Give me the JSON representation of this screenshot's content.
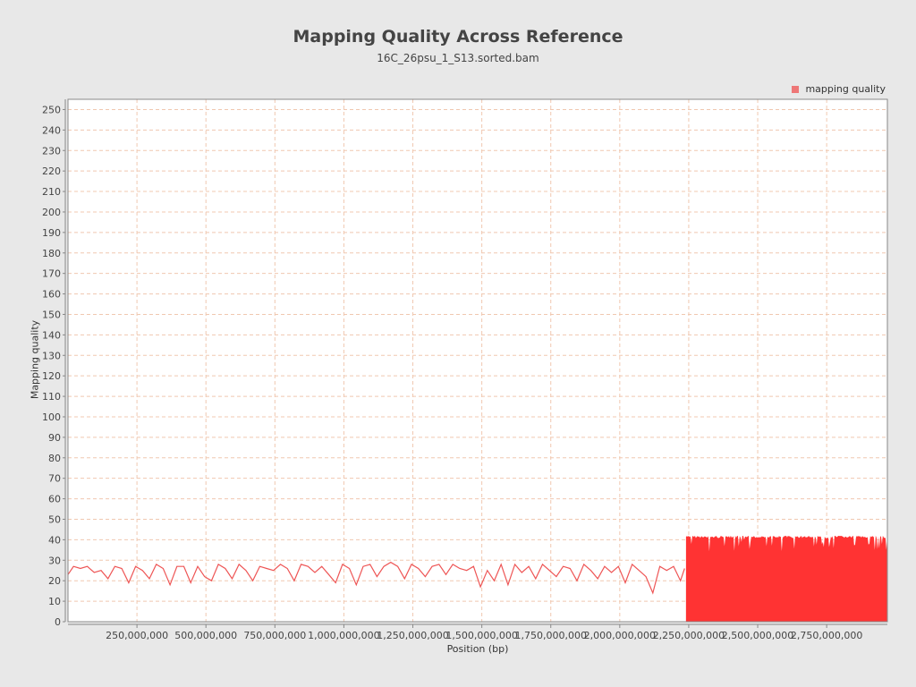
{
  "chart_data": {
    "type": "line",
    "title": "Mapping Quality Across Reference",
    "subtitle": "16C_26psu_1_S13.sorted.bam",
    "xlabel": "Position (bp)",
    "ylabel": "Mapping quality",
    "xlim": [
      0,
      2970000000
    ],
    "ylim": [
      0,
      255
    ],
    "yticks": [
      0,
      10,
      20,
      30,
      40,
      50,
      60,
      70,
      80,
      90,
      100,
      110,
      120,
      130,
      140,
      150,
      160,
      170,
      180,
      190,
      200,
      210,
      220,
      230,
      240,
      250
    ],
    "xticks": [
      250000000,
      500000000,
      750000000,
      1000000000,
      1250000000,
      1500000000,
      1750000000,
      2000000000,
      2250000000,
      2500000000,
      2750000000
    ],
    "xtick_labels": [
      "250,000,000",
      "500,000,000",
      "750,000,000",
      "1,000,000,000",
      "1,250,000,000",
      "1,500,000,000",
      "1,750,000,000",
      "2,000,000,000",
      "2,250,000,000",
      "2,500,000,000",
      "2,750,000,000"
    ],
    "grid": true,
    "legend_position": "top-right",
    "series": [
      {
        "name": "mapping quality",
        "color": "#f03c3c",
        "description_approx": "values read from plot",
        "x": [
          0,
          20000000,
          45000000,
          70000000,
          95000000,
          120000000,
          145000000,
          170000000,
          195000000,
          220000000,
          245000000,
          270000000,
          295000000,
          320000000,
          345000000,
          370000000,
          395000000,
          420000000,
          445000000,
          470000000,
          495000000,
          520000000,
          545000000,
          570000000,
          595000000,
          620000000,
          645000000,
          670000000,
          695000000,
          720000000,
          745000000,
          770000000,
          795000000,
          820000000,
          845000000,
          870000000,
          895000000,
          920000000,
          945000000,
          970000000,
          995000000,
          1020000000,
          1045000000,
          1070000000,
          1095000000,
          1120000000,
          1145000000,
          1170000000,
          1195000000,
          1220000000,
          1245000000,
          1270000000,
          1295000000,
          1320000000,
          1345000000,
          1370000000,
          1395000000,
          1420000000,
          1445000000,
          1470000000,
          1495000000,
          1520000000,
          1545000000,
          1570000000,
          1595000000,
          1620000000,
          1645000000,
          1670000000,
          1695000000,
          1720000000,
          1745000000,
          1770000000,
          1795000000,
          1820000000,
          1845000000,
          1870000000,
          1895000000,
          1920000000,
          1945000000,
          1970000000,
          1995000000,
          2020000000,
          2045000000,
          2070000000,
          2095000000,
          2120000000,
          2145000000,
          2170000000,
          2195000000,
          2220000000,
          2235000000
        ],
        "y": [
          23,
          27,
          26,
          27,
          24,
          25,
          21,
          27,
          26,
          19,
          27,
          25,
          21,
          28,
          26,
          18,
          27,
          27,
          19,
          27,
          22,
          20,
          28,
          26,
          21,
          28,
          25,
          20,
          27,
          26,
          25,
          28,
          26,
          20,
          28,
          27,
          24,
          27,
          23,
          19,
          28,
          26,
          18,
          27,
          28,
          22,
          27,
          29,
          27,
          21,
          28,
          26,
          22,
          27,
          28,
          23,
          28,
          26,
          25,
          27,
          17,
          25,
          20,
          28,
          18,
          28,
          24,
          27,
          21,
          28,
          25,
          22,
          27,
          26,
          20,
          28,
          25,
          21,
          27,
          24,
          27,
          19,
          28,
          25,
          22,
          14,
          27,
          25,
          27,
          20,
          26
        ]
      }
    ],
    "dense_region": {
      "x_start": 2240000000,
      "x_end": 2970000000,
      "y_max_typical": 42,
      "y_min_typical": 0,
      "dips_to": 34,
      "color": "#ff3333"
    }
  }
}
